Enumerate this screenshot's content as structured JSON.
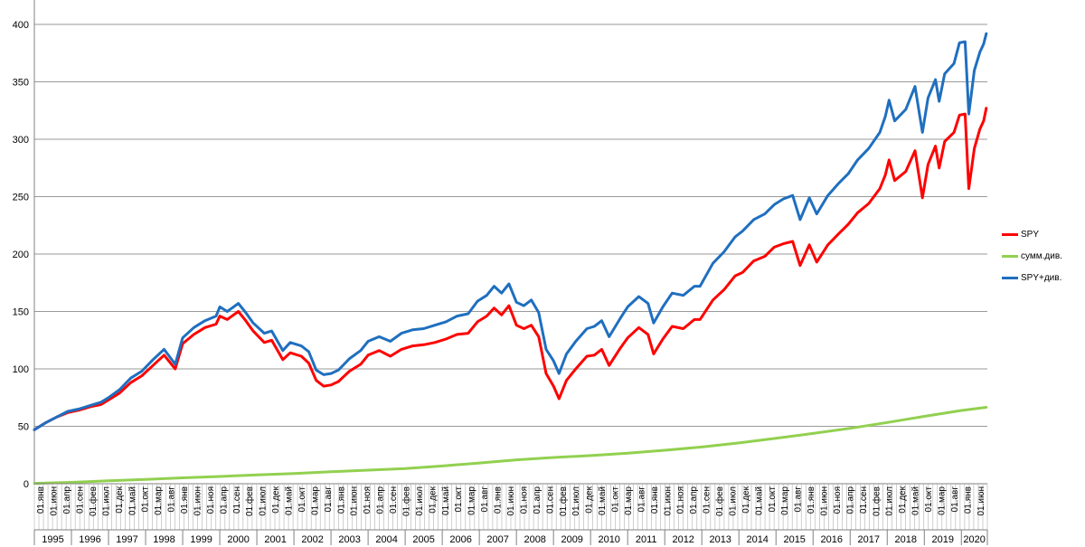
{
  "chart_data": {
    "type": "line",
    "ylim": [
      0,
      400
    ],
    "yticks": [
      0,
      50,
      100,
      150,
      200,
      250,
      300,
      350,
      400
    ],
    "grid": true,
    "legend_position": "right",
    "x_month_labels": [
      "01.янв",
      "01.июн",
      "01.апр",
      "01.сен",
      "01.фев",
      "01.июл",
      "01.дек",
      "01.май",
      "01.окт",
      "01.мар",
      "01.авг",
      "01.янв",
      "01.июн",
      "01.ноя",
      "01.апр",
      "01.сен",
      "01.фев",
      "01.июл",
      "01.дек",
      "01.май",
      "01.окт",
      "01.мар",
      "01.авг",
      "01.янв",
      "01.июн",
      "01.ноя",
      "01.апр",
      "01.сен",
      "01.фев",
      "01.июл",
      "01.дек",
      "01.май",
      "01.окт",
      "01.мар",
      "01.авг",
      "01.янв",
      "01.июн",
      "01.ноя",
      "01.апр",
      "01.сен",
      "01.фев",
      "01.июл",
      "01.дек",
      "01.май",
      "01.окт",
      "01.мар",
      "01.авг",
      "01.янв",
      "01.июн",
      "01.ноя",
      "01.апр",
      "01.сен",
      "01.фев",
      "01.июл",
      "01.дек",
      "01.май",
      "01.окт",
      "01.мар",
      "01.авг",
      "01.янв",
      "01.июн",
      "01.ноя",
      "01.апр",
      "01.сен",
      "01.фев",
      "01.июл",
      "01.дек",
      "01.май",
      "01.окт",
      "01.мар",
      "01.авг",
      "01.янв",
      "01.июн"
    ],
    "x_years": [
      {
        "label": "1995",
        "start": 1995.0,
        "end": 1996.0
      },
      {
        "label": "1996",
        "start": 1996.0,
        "end": 1997.0
      },
      {
        "label": "1997",
        "start": 1997.0,
        "end": 1998.0
      },
      {
        "label": "1998",
        "start": 1998.0,
        "end": 1999.0
      },
      {
        "label": "1999",
        "start": 1999.0,
        "end": 2000.0
      },
      {
        "label": "2000",
        "start": 2000.0,
        "end": 2001.0
      },
      {
        "label": "2001",
        "start": 2001.0,
        "end": 2002.0
      },
      {
        "label": "2002",
        "start": 2002.0,
        "end": 2003.0
      },
      {
        "label": "2003",
        "start": 2003.0,
        "end": 2004.0
      },
      {
        "label": "2004",
        "start": 2004.0,
        "end": 2005.0
      },
      {
        "label": "2005",
        "start": 2005.0,
        "end": 2006.0
      },
      {
        "label": "2006",
        "start": 2006.0,
        "end": 2007.0
      },
      {
        "label": "2007",
        "start": 2007.0,
        "end": 2008.0
      },
      {
        "label": "2008",
        "start": 2008.0,
        "end": 2009.0
      },
      {
        "label": "2009",
        "start": 2009.0,
        "end": 2010.0
      },
      {
        "label": "2010",
        "start": 2010.0,
        "end": 2011.0
      },
      {
        "label": "2011",
        "start": 2011.0,
        "end": 2012.0
      },
      {
        "label": "2012",
        "start": 2012.0,
        "end": 2013.0
      },
      {
        "label": "2013",
        "start": 2013.0,
        "end": 2014.0
      },
      {
        "label": "2014",
        "start": 2014.0,
        "end": 2015.0
      },
      {
        "label": "2015",
        "start": 2015.0,
        "end": 2016.0
      },
      {
        "label": "2016",
        "start": 2016.0,
        "end": 2017.0
      },
      {
        "label": "2017",
        "start": 2017.0,
        "end": 2018.0
      },
      {
        "label": "2018",
        "start": 2018.0,
        "end": 2019.0
      },
      {
        "label": "2019",
        "start": 2019.0,
        "end": 2020.0
      },
      {
        "label": "2020",
        "start": 2020.0,
        "end": 2020.7
      }
    ],
    "x_range": [
      1995.0,
      2020.7
    ],
    "series": [
      {
        "name": "SPY",
        "color": "#ff0000",
        "points": [
          [
            1995.0,
            47
          ],
          [
            1995.3,
            53
          ],
          [
            1995.6,
            58
          ],
          [
            1995.9,
            62
          ],
          [
            1996.2,
            64
          ],
          [
            1996.5,
            67
          ],
          [
            1996.8,
            69
          ],
          [
            1997.0,
            73
          ],
          [
            1997.3,
            79
          ],
          [
            1997.6,
            88
          ],
          [
            1997.9,
            94
          ],
          [
            1998.2,
            103
          ],
          [
            1998.5,
            112
          ],
          [
            1998.8,
            100
          ],
          [
            1999.0,
            122
          ],
          [
            1999.3,
            130
          ],
          [
            1999.6,
            136
          ],
          [
            1999.9,
            139
          ],
          [
            2000.0,
            146
          ],
          [
            2000.2,
            143
          ],
          [
            2000.5,
            150
          ],
          [
            2000.7,
            142
          ],
          [
            2000.9,
            133
          ],
          [
            2001.2,
            123
          ],
          [
            2001.4,
            125
          ],
          [
            2001.7,
            108
          ],
          [
            2001.9,
            114
          ],
          [
            2002.2,
            111
          ],
          [
            2002.4,
            105
          ],
          [
            2002.6,
            90
          ],
          [
            2002.8,
            85
          ],
          [
            2003.0,
            86
          ],
          [
            2003.2,
            89
          ],
          [
            2003.5,
            98
          ],
          [
            2003.8,
            104
          ],
          [
            2004.0,
            112
          ],
          [
            2004.3,
            116
          ],
          [
            2004.6,
            111
          ],
          [
            2004.9,
            117
          ],
          [
            2005.2,
            120
          ],
          [
            2005.5,
            121
          ],
          [
            2005.8,
            123
          ],
          [
            2006.1,
            126
          ],
          [
            2006.4,
            130
          ],
          [
            2006.7,
            131
          ],
          [
            2006.95,
            141
          ],
          [
            2007.2,
            146
          ],
          [
            2007.4,
            153
          ],
          [
            2007.6,
            147
          ],
          [
            2007.8,
            155
          ],
          [
            2008.0,
            138
          ],
          [
            2008.2,
            135
          ],
          [
            2008.4,
            138
          ],
          [
            2008.6,
            128
          ],
          [
            2008.8,
            96
          ],
          [
            2009.0,
            85
          ],
          [
            2009.15,
            74
          ],
          [
            2009.35,
            90
          ],
          [
            2009.6,
            100
          ],
          [
            2009.9,
            111
          ],
          [
            2010.1,
            112
          ],
          [
            2010.3,
            117
          ],
          [
            2010.5,
            103
          ],
          [
            2010.8,
            118
          ],
          [
            2011.0,
            127
          ],
          [
            2011.3,
            136
          ],
          [
            2011.55,
            130
          ],
          [
            2011.7,
            113
          ],
          [
            2011.95,
            126
          ],
          [
            2012.2,
            137
          ],
          [
            2012.5,
            135
          ],
          [
            2012.8,
            143
          ],
          [
            2012.95,
            143
          ],
          [
            2013.3,
            160
          ],
          [
            2013.6,
            169
          ],
          [
            2013.9,
            181
          ],
          [
            2014.1,
            184
          ],
          [
            2014.4,
            194
          ],
          [
            2014.7,
            198
          ],
          [
            2014.95,
            206
          ],
          [
            2015.2,
            209
          ],
          [
            2015.45,
            211
          ],
          [
            2015.65,
            190
          ],
          [
            2015.9,
            208
          ],
          [
            2016.1,
            193
          ],
          [
            2016.4,
            208
          ],
          [
            2016.7,
            218
          ],
          [
            2016.95,
            226
          ],
          [
            2017.2,
            236
          ],
          [
            2017.5,
            244
          ],
          [
            2017.8,
            257
          ],
          [
            2017.95,
            269
          ],
          [
            2018.05,
            282
          ],
          [
            2018.2,
            264
          ],
          [
            2018.5,
            272
          ],
          [
            2018.75,
            290
          ],
          [
            2018.95,
            249
          ],
          [
            2019.1,
            278
          ],
          [
            2019.3,
            294
          ],
          [
            2019.4,
            275
          ],
          [
            2019.55,
            298
          ],
          [
            2019.8,
            306
          ],
          [
            2019.95,
            321
          ],
          [
            2020.1,
            322
          ],
          [
            2020.2,
            257
          ],
          [
            2020.35,
            292
          ],
          [
            2020.5,
            309
          ],
          [
            2020.6,
            316
          ],
          [
            2020.67,
            327
          ]
        ]
      },
      {
        "name": "сумм.див.",
        "color": "#92d050",
        "points": [
          [
            1995.0,
            0.3
          ],
          [
            1996.0,
            1.2
          ],
          [
            1997.0,
            2.5
          ],
          [
            1998.0,
            3.8
          ],
          [
            1999.0,
            5.1
          ],
          [
            2000.0,
            6.3
          ],
          [
            2001.0,
            7.6
          ],
          [
            2002.0,
            8.9
          ],
          [
            2003.0,
            10.4
          ],
          [
            2004.0,
            11.8
          ],
          [
            2005.0,
            13.2
          ],
          [
            2006.0,
            15.4
          ],
          [
            2007.0,
            18.0
          ],
          [
            2008.0,
            20.8
          ],
          [
            2009.0,
            22.8
          ],
          [
            2010.0,
            24.5
          ],
          [
            2011.0,
            26.6
          ],
          [
            2012.0,
            29.1
          ],
          [
            2013.0,
            32.0
          ],
          [
            2014.0,
            35.5
          ],
          [
            2015.0,
            39.6
          ],
          [
            2016.0,
            43.8
          ],
          [
            2017.0,
            48.3
          ],
          [
            2018.0,
            53.3
          ],
          [
            2019.0,
            58.7
          ],
          [
            2020.0,
            63.8
          ],
          [
            2020.67,
            66.5
          ]
        ]
      },
      {
        "name": "SPY+див.",
        "color": "#1f6fbf",
        "points": [
          [
            1995.0,
            47
          ],
          [
            1995.3,
            53
          ],
          [
            1995.6,
            58
          ],
          [
            1995.9,
            63
          ],
          [
            1996.2,
            65
          ],
          [
            1996.5,
            68
          ],
          [
            1996.8,
            71
          ],
          [
            1997.0,
            75
          ],
          [
            1997.3,
            82
          ],
          [
            1997.6,
            92
          ],
          [
            1997.9,
            98
          ],
          [
            1998.2,
            108
          ],
          [
            1998.5,
            117
          ],
          [
            1998.8,
            104
          ],
          [
            1999.0,
            127
          ],
          [
            1999.3,
            136
          ],
          [
            1999.6,
            142
          ],
          [
            1999.9,
            146
          ],
          [
            2000.0,
            154
          ],
          [
            2000.2,
            150
          ],
          [
            2000.5,
            157
          ],
          [
            2000.7,
            149
          ],
          [
            2000.9,
            140
          ],
          [
            2001.2,
            131
          ],
          [
            2001.4,
            133
          ],
          [
            2001.7,
            116
          ],
          [
            2001.9,
            123
          ],
          [
            2002.2,
            120
          ],
          [
            2002.4,
            115
          ],
          [
            2002.6,
            99
          ],
          [
            2002.8,
            95
          ],
          [
            2003.0,
            96
          ],
          [
            2003.2,
            99
          ],
          [
            2003.5,
            109
          ],
          [
            2003.8,
            116
          ],
          [
            2004.0,
            124
          ],
          [
            2004.3,
            128
          ],
          [
            2004.6,
            124
          ],
          [
            2004.9,
            131
          ],
          [
            2005.2,
            134
          ],
          [
            2005.5,
            135
          ],
          [
            2005.8,
            138
          ],
          [
            2006.1,
            141
          ],
          [
            2006.4,
            146
          ],
          [
            2006.7,
            148
          ],
          [
            2006.95,
            159
          ],
          [
            2007.2,
            164
          ],
          [
            2007.4,
            172
          ],
          [
            2007.6,
            166
          ],
          [
            2007.8,
            174
          ],
          [
            2008.0,
            158
          ],
          [
            2008.2,
            155
          ],
          [
            2008.4,
            160
          ],
          [
            2008.6,
            149
          ],
          [
            2008.8,
            117
          ],
          [
            2009.0,
            107
          ],
          [
            2009.15,
            96
          ],
          [
            2009.35,
            113
          ],
          [
            2009.6,
            124
          ],
          [
            2009.9,
            135
          ],
          [
            2010.1,
            137
          ],
          [
            2010.3,
            142
          ],
          [
            2010.5,
            128
          ],
          [
            2010.8,
            144
          ],
          [
            2011.0,
            154
          ],
          [
            2011.3,
            163
          ],
          [
            2011.55,
            157
          ],
          [
            2011.7,
            140
          ],
          [
            2011.95,
            154
          ],
          [
            2012.2,
            166
          ],
          [
            2012.5,
            164
          ],
          [
            2012.8,
            172
          ],
          [
            2012.95,
            172
          ],
          [
            2013.3,
            192
          ],
          [
            2013.6,
            202
          ],
          [
            2013.9,
            215
          ],
          [
            2014.1,
            220
          ],
          [
            2014.4,
            230
          ],
          [
            2014.7,
            235
          ],
          [
            2014.95,
            243
          ],
          [
            2015.2,
            248
          ],
          [
            2015.45,
            251
          ],
          [
            2015.65,
            230
          ],
          [
            2015.9,
            249
          ],
          [
            2016.1,
            235
          ],
          [
            2016.4,
            251
          ],
          [
            2016.7,
            262
          ],
          [
            2016.95,
            270
          ],
          [
            2017.2,
            282
          ],
          [
            2017.5,
            292
          ],
          [
            2017.8,
            306
          ],
          [
            2017.95,
            320
          ],
          [
            2018.05,
            334
          ],
          [
            2018.2,
            316
          ],
          [
            2018.5,
            326
          ],
          [
            2018.75,
            346
          ],
          [
            2018.95,
            306
          ],
          [
            2019.1,
            336
          ],
          [
            2019.3,
            352
          ],
          [
            2019.4,
            333
          ],
          [
            2019.55,
            357
          ],
          [
            2019.8,
            366
          ],
          [
            2019.95,
            384
          ],
          [
            2020.1,
            385
          ],
          [
            2020.2,
            322
          ],
          [
            2020.35,
            360
          ],
          [
            2020.5,
            376
          ],
          [
            2020.6,
            383
          ],
          [
            2020.67,
            392
          ]
        ]
      }
    ]
  }
}
